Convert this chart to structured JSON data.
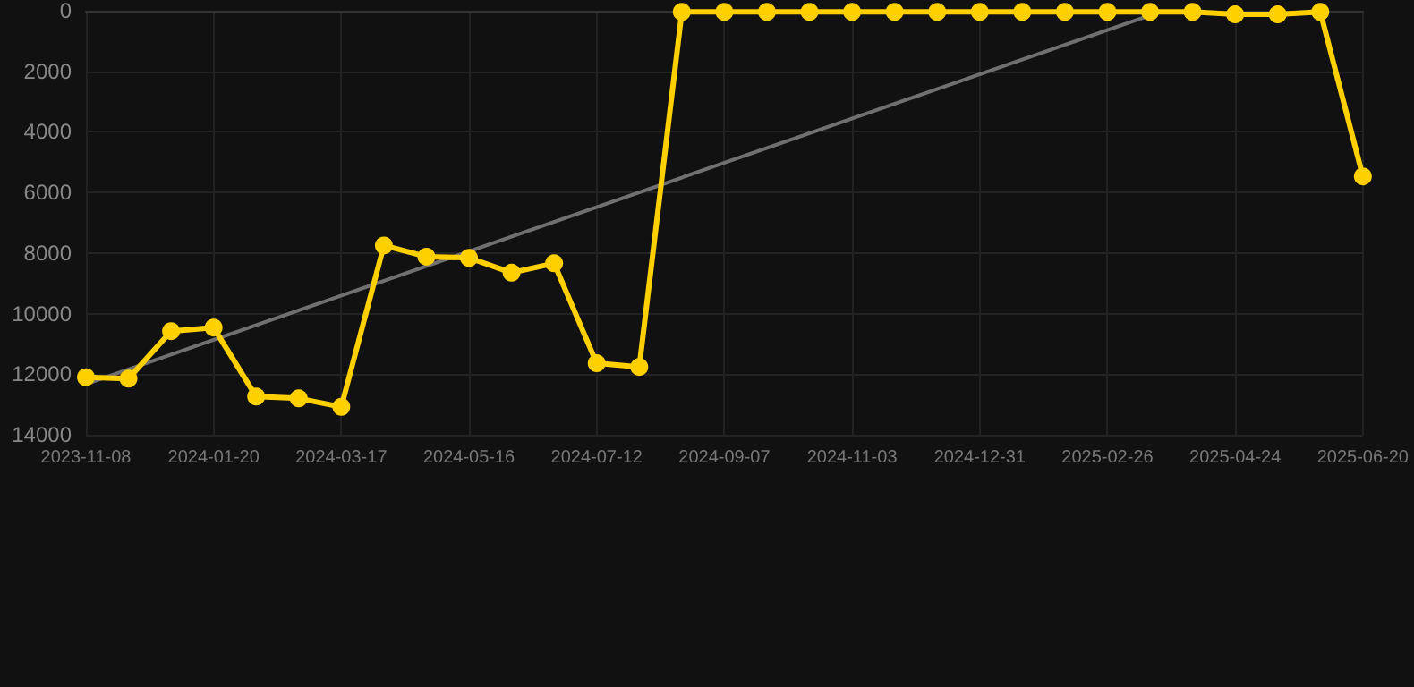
{
  "chart_data": {
    "type": "line",
    "categories": [
      "2023-11-08",
      null,
      null,
      "2024-01-20",
      null,
      null,
      "2024-03-17",
      null,
      null,
      "2024-05-16",
      null,
      null,
      "2024-07-12",
      null,
      null,
      "2024-09-07",
      null,
      null,
      "2024-11-03",
      null,
      null,
      "2024-12-31",
      null,
      null,
      "2025-02-26",
      null,
      null,
      "2025-04-24",
      null,
      null,
      "2025-06-20"
    ],
    "series": [
      {
        "color": "#ffd000",
        "marker": "circle",
        "values": [
          12100,
          12150,
          10580,
          10460,
          12740,
          12800,
          13080,
          7750,
          8120,
          8160,
          8650,
          8340,
          11640,
          11760,
          40,
          40,
          40,
          40,
          40,
          40,
          40,
          40,
          40,
          40,
          40,
          40,
          40,
          120,
          120,
          40,
          5470
        ]
      },
      {
        "color": "#707070",
        "marker": "none",
        "values": [
          12330,
          null,
          null,
          null,
          null,
          null,
          null,
          null,
          null,
          null,
          null,
          null,
          null,
          null,
          null,
          null,
          null,
          null,
          null,
          null,
          null,
          null,
          null,
          null,
          null,
          150,
          null,
          null,
          null,
          null,
          null
        ]
      }
    ],
    "ylim": [
      14000,
      0
    ],
    "yticks": [
      0,
      2000,
      4000,
      6000,
      8000,
      10000,
      12000,
      14000
    ],
    "grid": true
  }
}
